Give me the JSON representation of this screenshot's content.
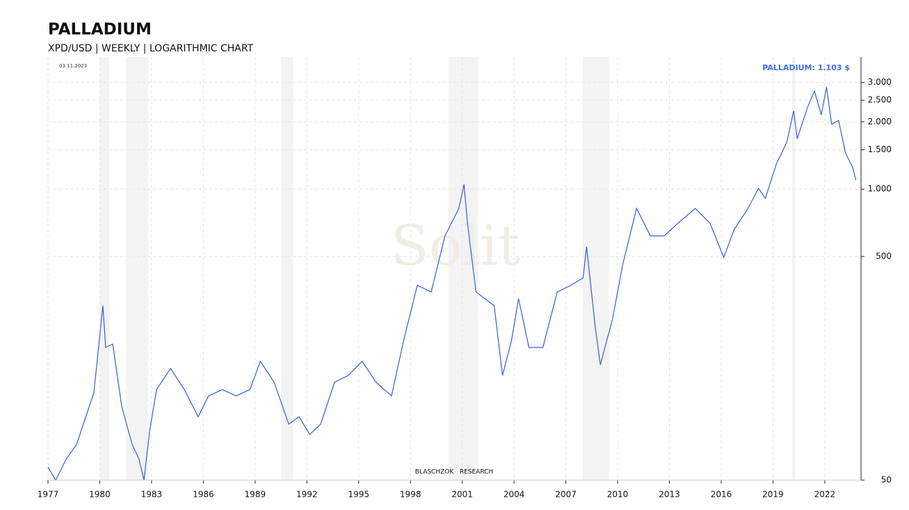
{
  "chart_data": {
    "type": "line",
    "title": "PALLADIUM",
    "subtitle": "XPD/USD | WEEKLY | LOGARITHMIC CHART",
    "date_label": "03.11.2023",
    "latest_label": "PALLADIUM: 1.103 $",
    "source": "BLASCHZOK   RESEARCH",
    "watermark": "Solit",
    "log_scale": true,
    "grid": true,
    "xlim": [
      1977,
      2024.1
    ],
    "ylim": [
      50,
      3900
    ],
    "xticks": [
      1977,
      1980,
      1983,
      1986,
      1989,
      1992,
      1995,
      1998,
      2001,
      2004,
      2007,
      2010,
      2013,
      2016,
      2019,
      2022
    ],
    "yticks": [
      50,
      500,
      {
        "value": 1000,
        "label": "1.000"
      },
      {
        "value": 1500,
        "label": "1.500"
      },
      {
        "value": 2000,
        "label": "2.000"
      },
      {
        "value": 2500,
        "label": "2.500"
      },
      {
        "value": 3000,
        "label": "3.000"
      }
    ],
    "shaded_ranges": [
      [
        1980.02,
        1980.55
      ],
      [
        1981.5,
        1982.8
      ],
      [
        1990.5,
        1991.2
      ],
      [
        2000.19,
        2001.9
      ],
      [
        2007.97,
        2009.5
      ],
      [
        2020.1,
        2020.3
      ]
    ],
    "x": [
      1977.0,
      1977.45,
      1978.05,
      1978.65,
      1979.25,
      1979.66,
      1980.18,
      1980.34,
      1980.75,
      1981.27,
      1981.88,
      1982.28,
      1982.56,
      1982.89,
      1983.29,
      1984.1,
      1984.9,
      1985.7,
      1986.3,
      1987.1,
      1987.9,
      1988.7,
      1989.3,
      1990.1,
      1990.95,
      1991.55,
      1992.16,
      1992.8,
      1993.6,
      1994.4,
      1995.2,
      1996.0,
      1996.9,
      1997.6,
      1998.4,
      1999.2,
      2000.0,
      2000.8,
      2001.1,
      2001.3,
      2001.8,
      2002.85,
      2003.33,
      2003.85,
      2004.26,
      2004.86,
      2005.67,
      2006.5,
      2007.3,
      2008.0,
      2008.2,
      2008.7,
      2009.0,
      2009.7,
      2010.3,
      2011.1,
      2011.9,
      2012.7,
      2013.5,
      2014.5,
      2015.35,
      2016.15,
      2016.75,
      2017.55,
      2018.16,
      2018.56,
      2019.2,
      2019.8,
      2020.2,
      2020.4,
      2021.0,
      2021.4,
      2021.8,
      2022.1,
      2022.4,
      2022.8,
      2023.2,
      2023.6,
      2023.8
    ],
    "series": [
      {
        "name": "PALLADIUM",
        "color": "#2f5fe0",
        "values": [
          57,
          50,
          62,
          72,
          99,
          123,
          301,
          196,
          203,
          107,
          72,
          62,
          50,
          83,
          127,
          158,
          127,
          96,
          119,
          127,
          119,
          127,
          170,
          137,
          89,
          96,
          80,
          89,
          137,
          147,
          170,
          137,
          119,
          210,
          372,
          347,
          618,
          820,
          1050,
          705,
          347,
          301,
          147,
          210,
          324,
          196,
          196,
          347,
          372,
          401,
          553,
          243,
          164,
          262,
          462,
          820,
          618,
          618,
          705,
          820,
          705,
          495,
          660,
          820,
          1009,
          910,
          1300,
          1620,
          2240,
          1680,
          2320,
          2750,
          2150,
          2860,
          1950,
          2030,
          1450,
          1260,
          1100
        ]
      }
    ]
  }
}
